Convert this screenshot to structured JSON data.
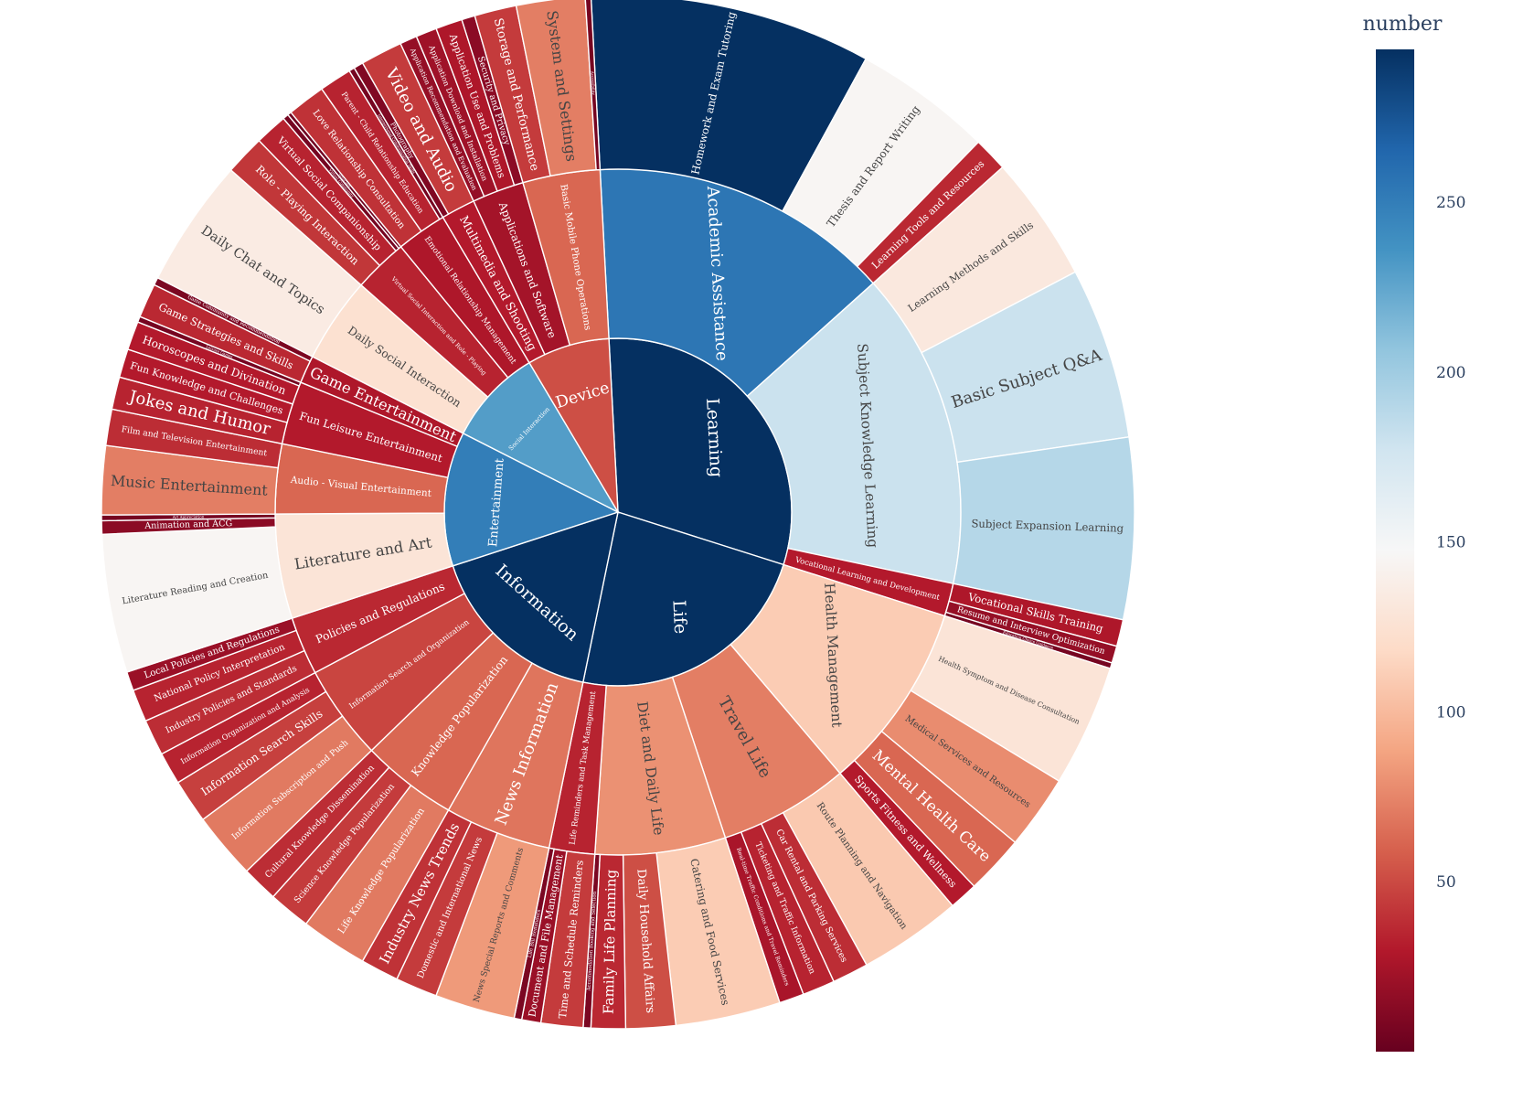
{
  "chart_data": {
    "type": "sunburst",
    "colorbar": {
      "title": "number",
      "range": [
        0,
        295
      ],
      "ticks": [
        50,
        100,
        150,
        200,
        250
      ],
      "colorscale": [
        "#67001f",
        "#b2182b",
        "#d6604d",
        "#f4a582",
        "#fddbc7",
        "#f7f7f7",
        "#d1e5f0",
        "#92c5de",
        "#4393c3",
        "#2166ac",
        "#053061"
      ]
    },
    "root": [
      {
        "name": "Learning",
        "value": 618,
        "children": [
          {
            "name": "Academic Assistance",
            "value": 255,
            "children": [
              {
                "name": "Homework and Exam Tutoring",
                "value": 295
              },
              {
                "name": "Thesis and Report Writing",
                "value": 145
              },
              {
                "name": "Learning Tools and Resources",
                "value": 36
              }
            ]
          },
          {
            "name": "Subject Knowledge Learning",
            "value": 180,
            "children": [
              {
                "name": "Learning Methods and Skills",
                "value": 132
              },
              {
                "name": "Basic Subject Q&A",
                "value": 180
              },
              {
                "name": "Subject Expansion Learning",
                "value": 190
              }
            ]
          },
          {
            "name": "Vocational Learning and Development",
            "value": 30,
            "children": [
              {
                "name": "Vocational Skills Training",
                "value": 28
              },
              {
                "name": "Resume and Interview Optimization",
                "value": 18
              },
              {
                "name": "Education Choice Guidance",
                "value": 6
              }
            ]
          }
        ]
      },
      {
        "name": "Life",
        "value": 400,
        "children": [
          {
            "name": "Health Management",
            "value": 110,
            "children": [
              {
                "name": "Health Symptom and Disease Consultation",
                "value": 128
              },
              {
                "name": "Medical Services and Resources",
                "value": 78
              },
              {
                "name": "Mental Health Care",
                "value": 62
              },
              {
                "name": "Sports Fitness and Wellness",
                "value": 30
              }
            ]
          },
          {
            "name": "Travel Life",
            "value": 72,
            "children": [
              {
                "name": "Route Planning and Navigation",
                "value": 108
              },
              {
                "name": "Car Rental and Parking Services",
                "value": 38
              },
              {
                "name": "Ticketing and Traffic Information",
                "value": 34
              },
              {
                "name": "Real-time Traffic Conditions and Travel Reminders",
                "value": 26
              }
            ]
          },
          {
            "name": "Diet and Daily Life",
            "value": 80,
            "children": [
              {
                "name": "Catering and Food Services",
                "value": 110
              },
              {
                "name": "Daily Household Affairs",
                "value": 52
              },
              {
                "name": "Family Life Planning",
                "value": 36
              },
              {
                "name": "Accommodation Booking and Selection",
                "value": 8
              }
            ]
          },
          {
            "name": "Life Reminders and Task Management",
            "value": 34,
            "children": [
              {
                "name": "Time and Schedule Reminders",
                "value": 44
              },
              {
                "name": "Document and File Management",
                "value": 20
              },
              {
                "name": "Life Bill Reminders",
                "value": 8
              }
            ]
          }
        ]
      },
      {
        "name": "Information",
        "value": 340,
        "children": [
          {
            "name": "News Information",
            "value": 68,
            "children": [
              {
                "name": "News Special Reports and Comments",
                "value": 84
              },
              {
                "name": "Domestic and International News",
                "value": 44
              },
              {
                "name": "Industry News Trends",
                "value": 40
              }
            ]
          },
          {
            "name": "Knowledge Popularization",
            "value": 62,
            "children": [
              {
                "name": "Life Knowledge Popularization",
                "value": 70
              },
              {
                "name": "Science Knowledge Popularization",
                "value": 44
              },
              {
                "name": "Cultural Knowledge Dissemination",
                "value": 38
              }
            ]
          },
          {
            "name": "Information Search and Organization",
            "value": 48,
            "children": [
              {
                "name": "Information Subscription and Push",
                "value": 70
              },
              {
                "name": "Information Search Skills",
                "value": 46
              },
              {
                "name": "Information Organization and Analysis",
                "value": 34
              }
            ]
          },
          {
            "name": "Policies and Regulations",
            "value": 36,
            "children": [
              {
                "name": "Industry Policies and Standards",
                "value": 38
              },
              {
                "name": "National Policy Interpretation",
                "value": 34
              },
              {
                "name": "Local Policies and Regulations",
                "value": 20
              }
            ]
          }
        ]
      },
      {
        "name": "Entertainment",
        "value": 250,
        "children": [
          {
            "name": "Literature and Art",
            "value": 128,
            "children": [
              {
                "name": "Literature Reading and Creation",
                "value": 145
              },
              {
                "name": "Animation and ACG",
                "value": 14
              },
              {
                "name": "Art Appreciation",
                "value": 6
              }
            ]
          },
          {
            "name": "Audio - Visual Entertainment",
            "value": 62,
            "children": [
              {
                "name": "Music Entertainment",
                "value": 72
              },
              {
                "name": "Film and Television Entertainment",
                "value": 38
              }
            ]
          },
          {
            "name": "Fun Leisure Entertainment",
            "value": 30,
            "children": [
              {
                "name": "Jokes and Humor",
                "value": 34
              },
              {
                "name": "Fun Knowledge and Challenges",
                "value": 30
              },
              {
                "name": "Horoscopes and Divination",
                "value": 30
              },
              {
                "name": "Leisure Games",
                "value": 6
              }
            ]
          },
          {
            "name": "Game Entertainment",
            "value": 28,
            "children": [
              {
                "name": "Game Strategies and Skills",
                "value": 36
              },
              {
                "name": "Game Community and Recommendation",
                "value": 8
              }
            ]
          }
        ]
      },
      {
        "name": "Social Interaction",
        "value": 230,
        "children": [
          {
            "name": "Daily Social Interaction",
            "value": 124,
            "children": [
              {
                "name": "Daily Chat and Topics",
                "value": 135
              }
            ]
          },
          {
            "name": "Virtual Social Interaction and Role - Playing",
            "value": 34,
            "children": [
              {
                "name": "Role - Playing Interaction",
                "value": 42
              },
              {
                "name": "Virtual Social Companionship",
                "value": 34
              },
              {
                "name": "Virtual Community",
                "value": 6
              },
              {
                "name": "Virtual Idols",
                "value": 4
              }
            ]
          },
          {
            "name": "Emotional Relationship Management",
            "value": 28,
            "children": [
              {
                "name": "Love Relationship Consultation",
                "value": 40
              },
              {
                "name": "Parent - Child Relationship Education",
                "value": 34
              },
              {
                "name": "Interpersonal Communication Skills",
                "value": 6
              }
            ]
          }
        ]
      },
      {
        "name": "Device",
        "value": 52,
        "children": [
          {
            "name": "Multimedia and Shooting",
            "value": 30,
            "children": [
              {
                "name": "Photography",
                "value": 10
              },
              {
                "name": "Video and Audio",
                "value": 44
              }
            ]
          },
          {
            "name": "Applications and Software",
            "value": 24,
            "children": [
              {
                "name": "Application Recommendation and Evaluation",
                "value": 18
              },
              {
                "name": "Application Download and Installation",
                "value": 22
              },
              {
                "name": "Application Use and Problems",
                "value": 28
              },
              {
                "name": "Security and Privacy",
                "value": 14
              }
            ]
          },
          {
            "name": "Basic Mobile Phone Operations",
            "value": 62,
            "children": [
              {
                "name": "Storage and Performance",
                "value": 44
              },
              {
                "name": "System and Settings",
                "value": 72
              },
              {
                "name": "Accessibility",
                "value": 6
              }
            ]
          }
        ]
      }
    ]
  }
}
